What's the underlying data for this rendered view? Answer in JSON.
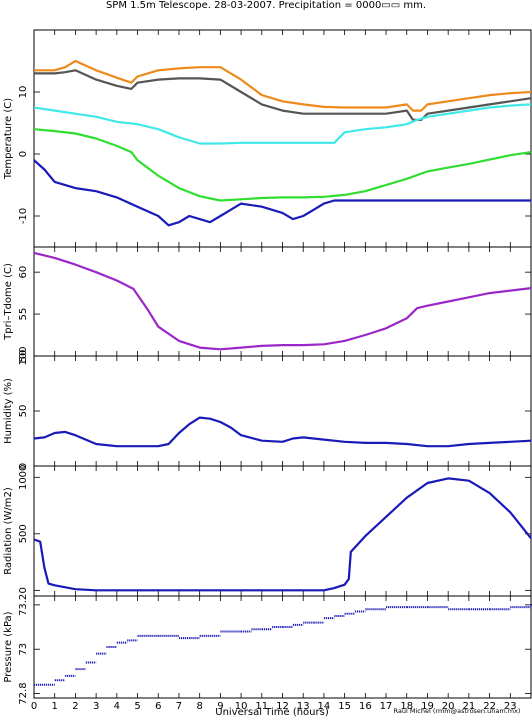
{
  "header": {
    "title": "SPM 1.5m Telescope. 28-03-2007. Precipitation = 0000▭▭ mm."
  },
  "footer": {
    "xlabel": "Universal Time (hours)",
    "credit": "Raul Michel (rmm@astrosen.unam.mx)"
  },
  "colors": {
    "orange": "#ee8a1c",
    "gray": "#555555",
    "cyan": "#40e8e8",
    "green": "#30dd30",
    "blue": "#1a1ab8",
    "purple": "#9a28c8"
  },
  "chart_data": [
    {
      "type": "line",
      "ylabel": "Temperature (C)",
      "xlim": [
        0,
        24
      ],
      "ylim": [
        -15,
        20
      ],
      "yticks": [
        -10,
        0,
        10
      ],
      "series": [
        {
          "color": "orange",
          "x": [
            0,
            1,
            1.5,
            2,
            3,
            4,
            4.7,
            5,
            6,
            7,
            8,
            9,
            10,
            11,
            12,
            13,
            14,
            15,
            16,
            17,
            18,
            18.3,
            18.7,
            19,
            20,
            21,
            22,
            23,
            24
          ],
          "y": [
            13.5,
            13.5,
            14,
            15,
            13.5,
            12.3,
            11.5,
            12.5,
            13.5,
            13.8,
            14,
            14,
            12,
            9.5,
            8.5,
            8,
            7.6,
            7.5,
            7.5,
            7.5,
            8,
            7,
            7,
            8,
            8.5,
            9,
            9.5,
            9.8,
            10
          ]
        },
        {
          "color": "gray",
          "x": [
            0,
            1,
            1.5,
            2,
            3,
            4,
            4.7,
            5,
            6,
            7,
            8,
            9,
            10,
            11,
            12,
            13,
            14,
            15,
            16,
            17,
            18,
            18.3,
            18.7,
            19,
            20,
            21,
            22,
            23,
            24
          ],
          "y": [
            13,
            13,
            13.2,
            13.5,
            12,
            11,
            10.5,
            11.5,
            12,
            12.2,
            12.2,
            12,
            10,
            8,
            7,
            6.5,
            6.5,
            6.5,
            6.5,
            6.5,
            7,
            5.5,
            5.5,
            6.5,
            7,
            7.5,
            8,
            8.5,
            9
          ]
        },
        {
          "color": "cyan",
          "x": [
            0,
            1,
            2,
            3,
            4,
            5,
            6,
            7,
            8,
            9,
            10,
            11,
            12,
            13,
            14,
            14.5,
            15,
            16,
            17,
            18,
            18.5,
            19,
            20,
            21,
            22,
            23,
            24
          ],
          "y": [
            7.5,
            7,
            6.5,
            6,
            5.2,
            4.8,
            4,
            2.7,
            1.7,
            1.7,
            1.8,
            1.8,
            1.8,
            1.8,
            1.8,
            1.8,
            3.5,
            4,
            4.3,
            4.8,
            5.5,
            6,
            6.5,
            7,
            7.5,
            7.8,
            8
          ]
        },
        {
          "color": "green",
          "x": [
            0,
            1,
            2,
            3,
            4,
            4.7,
            5,
            6,
            7,
            8,
            9,
            10,
            11,
            12,
            13,
            14,
            15,
            16,
            17,
            18,
            19,
            20,
            21,
            22,
            23,
            24
          ],
          "y": [
            4,
            3.7,
            3.3,
            2.5,
            1.3,
            0.3,
            -1,
            -3.5,
            -5.5,
            -6.8,
            -7.5,
            -7.3,
            -7.1,
            -7,
            -7,
            -6.9,
            -6.6,
            -6,
            -5,
            -4,
            -2.8,
            -2.2,
            -1.6,
            -0.9,
            -0.2,
            0.3
          ]
        },
        {
          "color": "blue",
          "x": [
            0,
            0.5,
            1,
            2,
            3,
            4,
            5,
            6,
            6.5,
            7,
            7.5,
            8,
            8.5,
            9,
            9.5,
            10,
            11,
            12,
            12.5,
            13,
            13.5,
            14,
            14.5,
            15,
            16,
            17,
            18,
            19,
            20,
            21,
            22,
            23,
            24
          ],
          "y": [
            -1,
            -2.5,
            -4.5,
            -5.5,
            -6,
            -7,
            -8.5,
            -10,
            -11.5,
            -11,
            -10,
            -10.5,
            -11,
            -10,
            -9,
            -8,
            -8.5,
            -9.5,
            -10.5,
            -10,
            -9,
            -8,
            -7.5,
            -7.5,
            -7.5,
            -7.5,
            -7.5,
            -7.5,
            -7.5,
            -7.5,
            -7.5,
            -7.5,
            -7.5
          ]
        }
      ]
    },
    {
      "type": "line",
      "ylabel": "Tpri–Tdome (C)",
      "xlim": [
        0,
        24
      ],
      "ylim": [
        50,
        63
      ],
      "yticks": [
        50,
        55,
        60
      ],
      "series": [
        {
          "color": "purple",
          "x": [
            0,
            1,
            2,
            3,
            4,
            4.8,
            5.5,
            6,
            7,
            8,
            9,
            10,
            11,
            12,
            13,
            14,
            15,
            16,
            17,
            18,
            18.5,
            19,
            20,
            21,
            22,
            23,
            24
          ],
          "y": [
            62.3,
            61.7,
            60.9,
            60,
            59,
            58,
            55.5,
            53.5,
            51.8,
            51,
            50.8,
            51,
            51.2,
            51.3,
            51.3,
            51.4,
            51.8,
            52.5,
            53.3,
            54.5,
            55.7,
            56,
            56.5,
            57,
            57.5,
            57.8,
            58.1
          ]
        }
      ]
    },
    {
      "type": "line",
      "ylabel": "Humidity (%)",
      "xlim": [
        0,
        24
      ],
      "ylim": [
        0,
        100
      ],
      "yticks": [
        0,
        50,
        100
      ],
      "series": [
        {
          "color": "blue",
          "x": [
            0,
            0.5,
            1,
            1.5,
            2,
            3,
            4,
            5,
            6,
            6.5,
            7,
            7.5,
            8,
            8.5,
            9,
            9.5,
            10,
            11,
            12,
            12.5,
            13,
            14,
            15,
            16,
            17,
            18,
            19,
            20,
            21,
            22,
            23,
            24
          ],
          "y": [
            25,
            26,
            30,
            31,
            28,
            20,
            18,
            18,
            18,
            20,
            30,
            38,
            44,
            43,
            40,
            35,
            28,
            23,
            22,
            25,
            26,
            24,
            22,
            21,
            21,
            20,
            18,
            18,
            20,
            21,
            22,
            23
          ]
        }
      ]
    },
    {
      "type": "line",
      "ylabel": "Radiation (W/m2)",
      "xlim": [
        0,
        24
      ],
      "ylim": [
        -50,
        1100
      ],
      "yticks": [
        0,
        500,
        1000
      ],
      "series": [
        {
          "color": "blue",
          "x": [
            0,
            0.3,
            0.5,
            0.7,
            1,
            2,
            3,
            4,
            5,
            6,
            7,
            8,
            9,
            10,
            11,
            12,
            13,
            14,
            14.5,
            15,
            15.2,
            15.3,
            16,
            17,
            18,
            19,
            20,
            21,
            22,
            23,
            24
          ],
          "y": [
            450,
            430,
            200,
            60,
            45,
            10,
            0,
            0,
            0,
            0,
            0,
            0,
            0,
            0,
            0,
            0,
            0,
            0,
            20,
            50,
            100,
            340,
            480,
            650,
            820,
            950,
            990,
            970,
            860,
            690,
            460
          ]
        }
      ]
    },
    {
      "type": "scatter",
      "ylabel": "Pressure (kPa)",
      "xlim": [
        0,
        24
      ],
      "ylim": [
        72.78,
        73.24
      ],
      "yticks": [
        72.8,
        73,
        73.2
      ],
      "series": [
        {
          "color": "blue",
          "x": [
            0,
            1,
            1.5,
            2,
            2.5,
            3,
            3.5,
            4,
            4.5,
            5,
            6,
            7,
            7.5,
            8,
            9,
            10,
            10.5,
            11,
            11.5,
            12,
            12.5,
            13,
            13.5,
            14,
            14.5,
            15,
            15.5,
            16,
            17,
            18,
            19,
            20,
            21,
            22,
            23,
            24
          ],
          "y": [
            72.84,
            72.86,
            72.88,
            72.91,
            72.94,
            72.98,
            73.01,
            73.03,
            73.04,
            73.06,
            73.06,
            73.05,
            73.05,
            73.06,
            73.08,
            73.08,
            73.09,
            73.09,
            73.1,
            73.1,
            73.11,
            73.12,
            73.12,
            73.14,
            73.15,
            73.16,
            73.17,
            73.18,
            73.19,
            73.19,
            73.19,
            73.18,
            73.18,
            73.18,
            73.19,
            73.2
          ]
        }
      ]
    }
  ],
  "xaxis": {
    "ticks": [
      0,
      1,
      2,
      3,
      4,
      5,
      6,
      7,
      8,
      9,
      10,
      11,
      12,
      13,
      14,
      15,
      16,
      17,
      18,
      19,
      20,
      21,
      22,
      23
    ],
    "tick_labels": [
      "0",
      "1",
      "2",
      "3",
      "4",
      "5",
      "6",
      "7",
      "8",
      "9",
      "10",
      "11",
      "12",
      "13",
      "14",
      "15",
      "16",
      "17",
      "18",
      "19",
      "20",
      "21",
      "22",
      "23"
    ]
  }
}
